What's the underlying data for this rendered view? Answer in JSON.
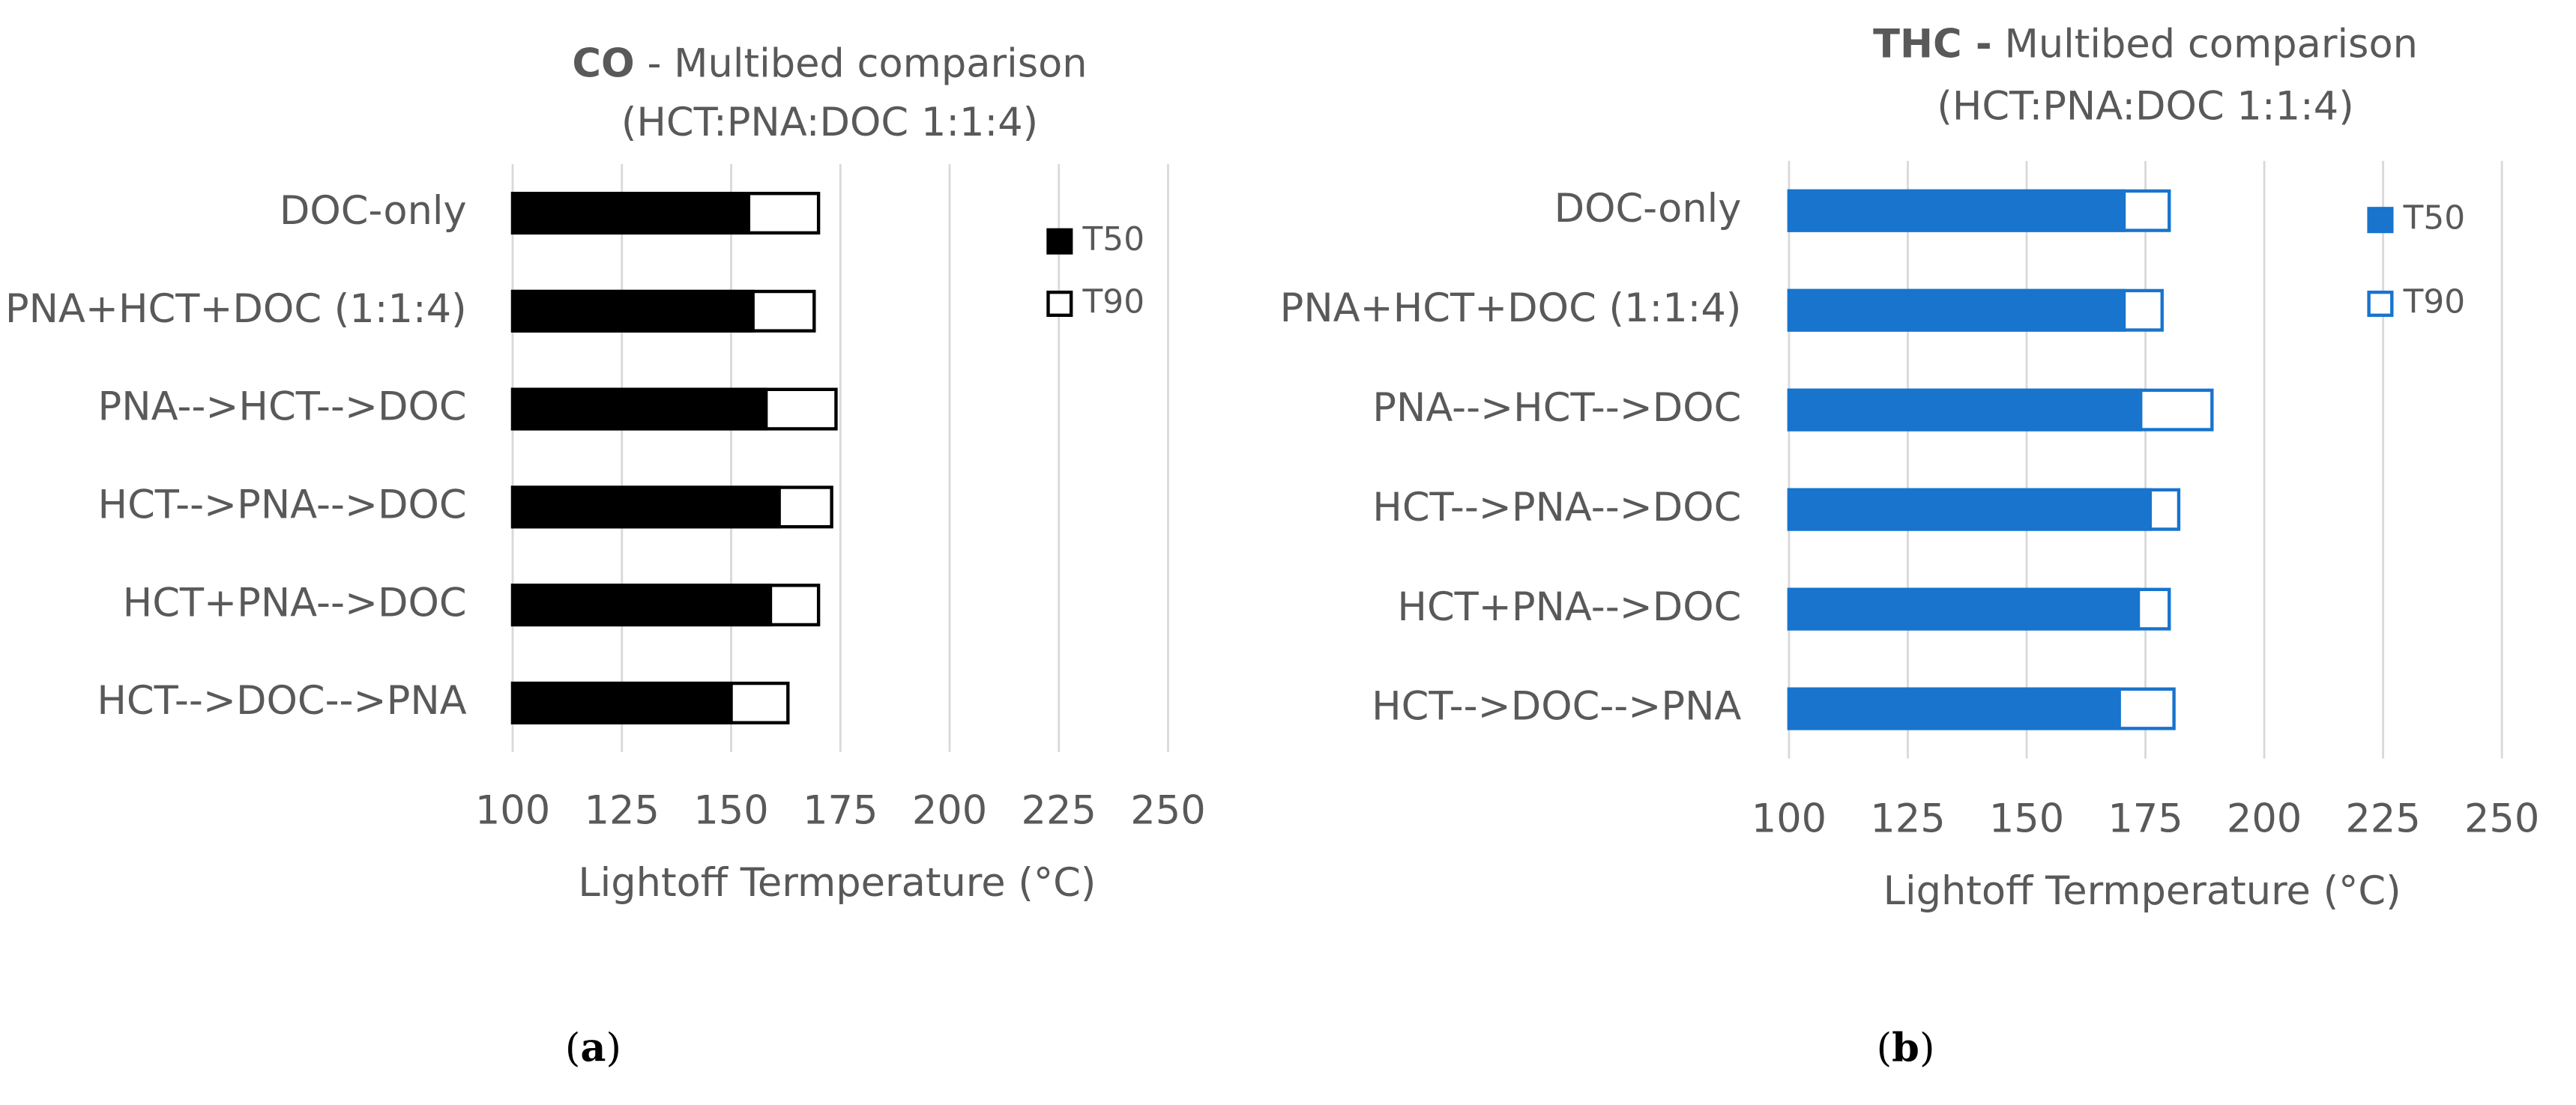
{
  "chart_data": [
    {
      "type": "bar",
      "orientation": "horizontal",
      "overlap": true,
      "title": {
        "bold": "CO",
        "rest": " - Multibed comparison"
      },
      "subtitle": "(HCT:PNA:DOC 1:1:4)",
      "caption": [
        "(",
        "a",
        ")"
      ],
      "categories": [
        "DOC-only",
        "PNA+HCT+DOC (1:1:4)",
        "PNA-->HCT-->DOC",
        "HCT-->PNA-->DOC",
        "HCT+PNA-->DOC",
        "HCT-->DOC-->PNA"
      ],
      "series": [
        {
          "name": "T90",
          "color": "#000000",
          "filled": false,
          "values": [
            170,
            169,
            174,
            173,
            170,
            163
          ]
        },
        {
          "name": "T50",
          "color": "#000000",
          "filled": true,
          "values": [
            154,
            155,
            158,
            161,
            159,
            150
          ]
        }
      ],
      "xlabel": "Lightoff Termperature (°C)",
      "xlim": [
        100,
        250
      ],
      "xticks": [
        100,
        125,
        150,
        175,
        200,
        225,
        250
      ],
      "grid": true,
      "legend": "right"
    },
    {
      "type": "bar",
      "orientation": "horizontal",
      "overlap": true,
      "title": {
        "bold": "THC -",
        "rest": " Multibed comparison"
      },
      "subtitle": "(HCT:PNA:DOC 1:1:4)",
      "caption": [
        "(",
        "b",
        ")"
      ],
      "categories": [
        "DOC-only",
        "PNA+HCT+DOC (1:1:4)",
        "PNA-->HCT-->DOC",
        "HCT-->PNA-->DOC",
        "HCT+PNA-->DOC",
        "HCT-->DOC-->PNA"
      ],
      "series": [
        {
          "name": "T90",
          "color": "#1874cd",
          "filled": false,
          "values": [
            180,
            178.5,
            189,
            182,
            180,
            181
          ]
        },
        {
          "name": "T50",
          "color": "#1874cd",
          "filled": true,
          "values": [
            170.5,
            170.5,
            174,
            176,
            173.5,
            169.5
          ]
        }
      ],
      "xlabel": "Lightoff Termperature (°C)",
      "xlim": [
        100,
        250
      ],
      "xticks": [
        100,
        125,
        150,
        175,
        200,
        225,
        250
      ],
      "grid": true,
      "legend": "right"
    }
  ]
}
